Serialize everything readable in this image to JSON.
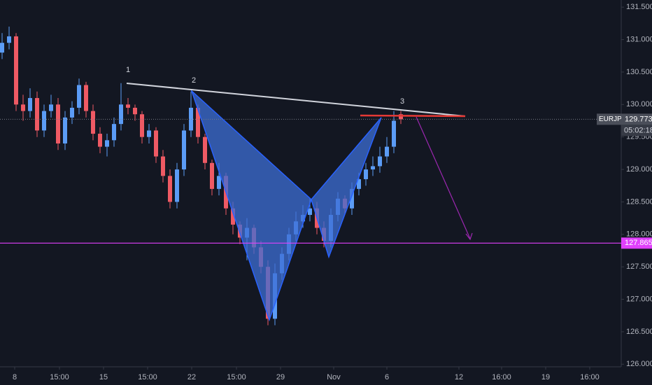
{
  "chart_data": {
    "type": "candlestick",
    "symbol": "EURJPY",
    "last_price": 129.773,
    "countdown": "05:02:18",
    "hline": 127.865,
    "annotations": [
      "1",
      "2",
      "3"
    ],
    "up_color": "#5b9cf6",
    "down_color": "#ef5a64",
    "hline_color": "#e040fb",
    "xlim": [
      -0.3,
      88.5
    ],
    "ylim": [
      125.96,
      131.61
    ],
    "xticks": [
      {
        "value": 1.8,
        "label": "8"
      },
      {
        "value": 8.2,
        "label": "15:00"
      },
      {
        "value": 14.5,
        "label": "15"
      },
      {
        "value": 20.8,
        "label": "15:00"
      },
      {
        "value": 27.1,
        "label": "22"
      },
      {
        "value": 33.5,
        "label": "15:00"
      },
      {
        "value": 39.8,
        "label": "29"
      },
      {
        "value": 47.4,
        "label": "Nov"
      },
      {
        "value": 55,
        "label": "6"
      },
      {
        "value": 65.3,
        "label": "12"
      },
      {
        "value": 71.4,
        "label": "16:00"
      },
      {
        "value": 77.7,
        "label": "19"
      },
      {
        "value": 84,
        "label": "16:00"
      }
    ],
    "yticks": [
      {
        "value": 126,
        "label": "126.000"
      },
      {
        "value": 126.5,
        "label": "126.500"
      },
      {
        "value": 127,
        "label": "127.000"
      },
      {
        "value": 127.5,
        "label": "127.500"
      },
      {
        "value": 128,
        "label": "128.000"
      },
      {
        "value": 128.5,
        "label": "128.500"
      },
      {
        "value": 129,
        "label": "129.000"
      },
      {
        "value": 129.5,
        "label": "129.500"
      },
      {
        "value": 130,
        "label": "130.000"
      },
      {
        "value": 130.5,
        "label": "130.500"
      },
      {
        "value": 131,
        "label": "131.000"
      },
      {
        "value": 131.5,
        "label": "131.500"
      }
    ],
    "open": [
      130.8,
      130.95,
      131.05,
      130.0,
      129.9,
      130.1,
      129.6,
      129.9,
      130.0,
      129.4,
      129.8,
      129.95,
      130.3,
      129.9,
      129.55,
      129.35,
      129.45,
      129.7,
      130.0,
      129.95,
      129.85,
      129.5,
      129.6,
      129.2,
      128.9,
      128.5,
      129.0,
      129.6,
      129.95,
      129.5,
      129.1,
      128.7,
      128.9,
      128.4,
      128.15,
      127.95,
      128.1,
      127.8,
      127.5,
      126.7,
      127.4,
      127.7,
      128.0,
      128.2,
      128.3,
      128.4,
      128.1,
      127.9,
      128.3,
      128.55,
      128.4,
      128.7,
      128.85,
      129.0,
      129.05,
      129.2,
      129.35,
      129.85
    ],
    "high": [
      131.1,
      131.2,
      131.1,
      130.15,
      130.25,
      130.2,
      130.0,
      130.15,
      130.1,
      129.9,
      130.05,
      130.4,
      130.35,
      130.0,
      129.65,
      129.55,
      129.8,
      130.33,
      130.1,
      130.0,
      129.9,
      129.7,
      129.65,
      129.3,
      129.0,
      129.1,
      129.7,
      130.2,
      130.0,
      129.55,
      129.15,
      129.1,
      128.95,
      128.5,
      128.2,
      128.25,
      128.15,
      127.9,
      127.6,
      127.55,
      127.8,
      128.1,
      128.35,
      128.45,
      128.55,
      128.5,
      128.2,
      128.4,
      128.65,
      128.6,
      128.8,
      128.95,
      129.1,
      129.2,
      129.35,
      129.5,
      129.9,
      129.9
    ],
    "low": [
      130.7,
      130.85,
      129.9,
      129.75,
      129.8,
      129.5,
      129.5,
      129.8,
      129.3,
      129.3,
      129.7,
      129.85,
      129.8,
      129.45,
      129.25,
      129.2,
      129.35,
      129.6,
      129.85,
      129.75,
      129.4,
      129.4,
      129.1,
      128.8,
      128.4,
      128.4,
      128.9,
      129.5,
      129.4,
      129.0,
      128.6,
      128.6,
      128.3,
      128.0,
      127.85,
      127.6,
      127.7,
      127.4,
      126.6,
      126.6,
      127.3,
      127.6,
      127.9,
      128.1,
      128.2,
      128.0,
      127.8,
      127.8,
      128.2,
      128.3,
      128.3,
      128.6,
      128.75,
      128.9,
      128.95,
      129.1,
      129.25,
      129.7
    ],
    "close": [
      130.95,
      131.05,
      130.0,
      129.9,
      130.1,
      129.6,
      129.9,
      130.0,
      129.4,
      129.8,
      129.95,
      130.3,
      129.9,
      129.55,
      129.35,
      129.45,
      129.7,
      130.0,
      129.95,
      129.85,
      129.5,
      129.6,
      129.2,
      128.9,
      128.5,
      129.0,
      129.6,
      129.95,
      129.5,
      129.1,
      128.7,
      128.9,
      128.4,
      128.15,
      127.95,
      128.1,
      127.8,
      127.5,
      126.7,
      127.4,
      127.7,
      128.0,
      128.2,
      128.3,
      128.4,
      128.1,
      127.9,
      128.3,
      128.55,
      128.4,
      128.7,
      128.85,
      129.0,
      129.05,
      129.2,
      129.35,
      129.75,
      129.773
    ]
  }
}
